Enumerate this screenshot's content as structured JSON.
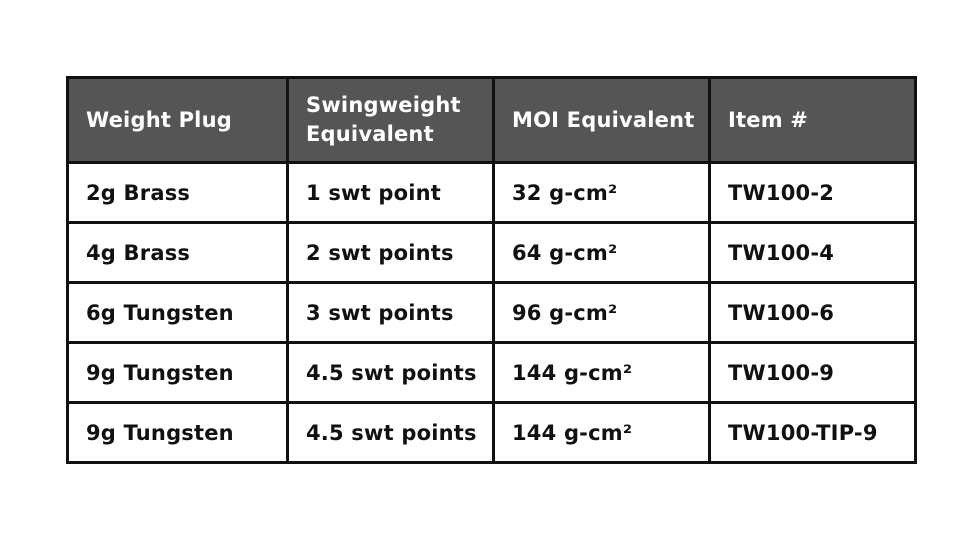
{
  "table": {
    "headers": [
      [
        "Weight Plug"
      ],
      [
        "Swingweight",
        "Equivalent"
      ],
      [
        "MOI Equivalent"
      ],
      [
        "Item #"
      ]
    ],
    "rows": [
      [
        "2g Brass",
        "1 swt point",
        "32 g-cm²",
        "TW100-2"
      ],
      [
        "4g Brass",
        "2 swt points",
        "64 g-cm²",
        "TW100-4"
      ],
      [
        "6g Tungsten",
        "3 swt points",
        "96 g-cm²",
        "TW100-6"
      ],
      [
        "9g Tungsten",
        "4.5 swt points",
        "144 g-cm²",
        "TW100-9"
      ],
      [
        "9g Tungsten",
        "4.5 swt points",
        "144 g-cm²",
        "TW100-TIP-9"
      ]
    ]
  },
  "colors": {
    "header_background": "#555555",
    "header_text": "#ffffff",
    "border": "#111111",
    "cell_text": "#111111"
  }
}
